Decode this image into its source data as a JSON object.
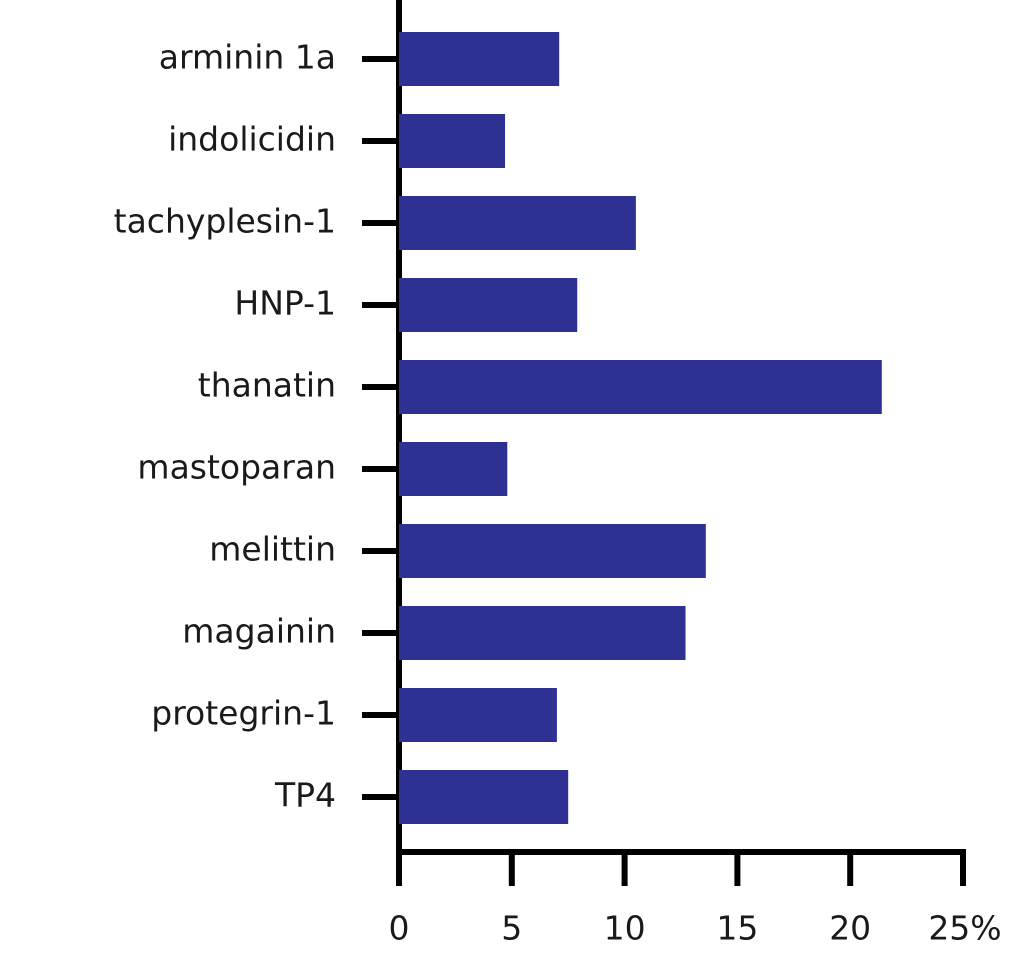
{
  "chart_data": {
    "type": "barh",
    "categories": [
      "arminin 1a",
      "indolicidin",
      "tachyplesin-1",
      "HNP-1",
      "thanatin",
      "mastoparan",
      "melittin",
      "magainin",
      "protegrin-1",
      "TP4"
    ],
    "values": [
      7.1,
      4.7,
      10.5,
      7.9,
      21.4,
      4.8,
      13.6,
      12.7,
      7.0,
      7.5
    ],
    "color": "#2e3192",
    "xlim": [
      0,
      25
    ],
    "xticks": [
      0,
      5,
      10,
      15,
      20,
      {
        "value": 25,
        "label": "25%"
      }
    ]
  }
}
